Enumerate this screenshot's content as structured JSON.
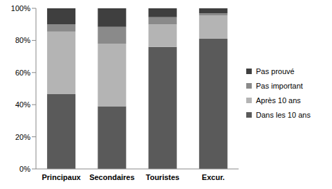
{
  "chart_data": {
    "type": "bar",
    "stacked": true,
    "grid": false,
    "legend": "right",
    "categories": [
      "Principaux",
      "Secondaires",
      "Touristes",
      "Excur."
    ],
    "series": [
      {
        "name": "Dans les 10 ans",
        "color": "#5a5a5a",
        "values": [
          46.5,
          39,
          76,
          81
        ]
      },
      {
        "name": "Après 10 ans",
        "color": "#b4b4b4",
        "values": [
          39,
          39,
          14,
          14.5
        ]
      },
      {
        "name": "Pas important",
        "color": "#8a8a8a",
        "values": [
          4.5,
          10.5,
          4.5,
          1.5
        ]
      },
      {
        "name": "Pas prouvé",
        "color": "#3f3f3f",
        "values": [
          10,
          11.5,
          5.5,
          3
        ]
      }
    ],
    "ylim": [
      0,
      100
    ],
    "yticks": [
      {
        "value": 0,
        "label": "0%"
      },
      {
        "value": 20,
        "label": "20%"
      },
      {
        "value": 40,
        "label": "40%"
      },
      {
        "value": 60,
        "label": "60%"
      },
      {
        "value": 80,
        "label": "80%"
      },
      {
        "value": 100,
        "label": "100%"
      }
    ]
  }
}
